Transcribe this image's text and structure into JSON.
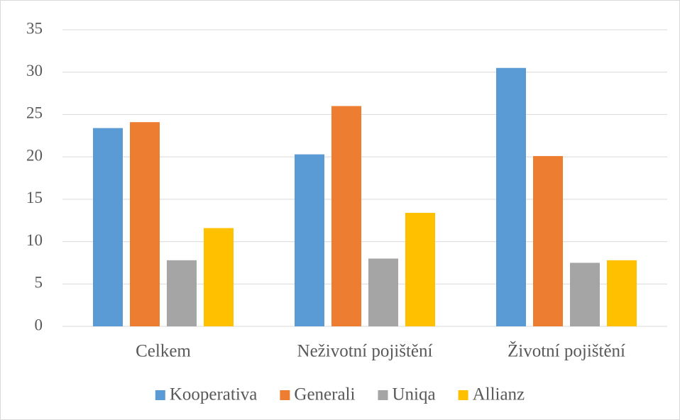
{
  "chart_data": {
    "type": "bar",
    "categories": [
      "Celkem",
      "Neživotní pojištění",
      "Životní pojištění"
    ],
    "series": [
      {
        "name": "Kooperativa",
        "color": "#5b9bd5",
        "values": [
          23.4,
          20.3,
          30.5
        ]
      },
      {
        "name": "Generali",
        "color": "#ed7d31",
        "values": [
          24.1,
          26.0,
          20.1
        ]
      },
      {
        "name": "Uniqa",
        "color": "#a5a5a5",
        "values": [
          7.8,
          8.0,
          7.5
        ]
      },
      {
        "name": "Allianz",
        "color": "#ffc000",
        "values": [
          11.6,
          13.4,
          7.8
        ]
      }
    ],
    "ylim": [
      0,
      35
    ],
    "yticks": [
      0,
      5,
      10,
      15,
      20,
      25,
      30,
      35
    ],
    "grid": true,
    "legend": "bottom"
  }
}
